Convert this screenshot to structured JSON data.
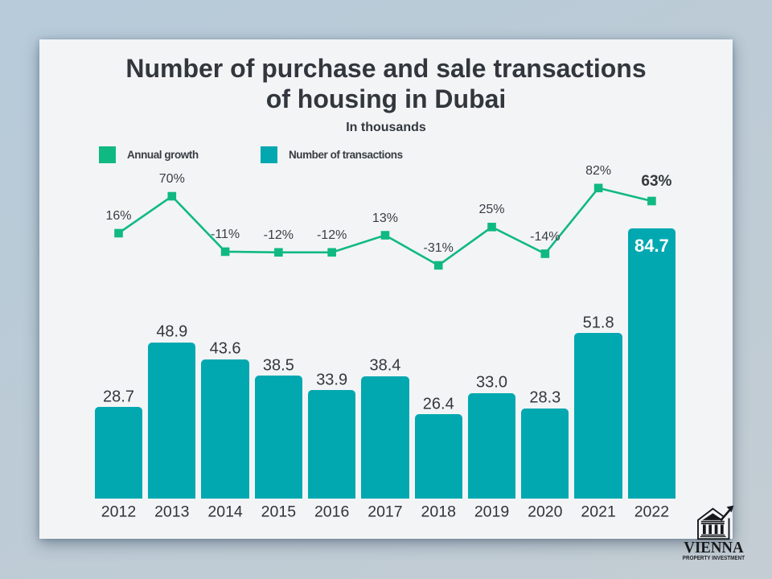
{
  "chart": {
    "title_line1": "Number of purchase and sale transactions",
    "title_line2": "of housing in Dubai",
    "subtitle": "In thousands",
    "legend": [
      {
        "label": "Annual growth",
        "color": "#10b981"
      },
      {
        "label": "Number of transactions",
        "color": "#02a8b0"
      }
    ]
  },
  "chart_data": {
    "type": "bar",
    "title": "Number of purchase and sale transactions of housing in Dubai",
    "subtitle": "In thousands",
    "categories": [
      "2012",
      "2013",
      "2014",
      "2015",
      "2016",
      "2017",
      "2018",
      "2019",
      "2020",
      "2021",
      "2022"
    ],
    "series": [
      {
        "name": "Annual growth",
        "type": "line",
        "unit": "percent",
        "color": "#10b981",
        "values": [
          16,
          70,
          -11,
          -12,
          -12,
          13,
          -31,
          25,
          -14,
          82,
          63
        ],
        "labels": [
          "16%",
          "70%",
          "-11%",
          "-12%",
          "-12%",
          "13%",
          "-31%",
          "25%",
          "-14%",
          "82%",
          "63%"
        ]
      },
      {
        "name": "Number of transactions",
        "type": "bar",
        "unit": "thousands",
        "color": "#02a8b0",
        "values": [
          28.7,
          48.9,
          43.6,
          38.5,
          33.9,
          38.4,
          26.4,
          33.0,
          28.3,
          51.8,
          84.7
        ],
        "labels": [
          "28.7",
          "48.9",
          "43.6",
          "38.5",
          "33.9",
          "38.4",
          "26.4",
          "33.0",
          "28.3",
          "51.8",
          "84.7"
        ]
      }
    ],
    "grid": false,
    "legend_position": "top-left"
  },
  "logo": {
    "name": "VIENNA",
    "tagline": "PROPERTY INVESTMENT",
    "icon": "bank-building-with-growth-arrow"
  }
}
